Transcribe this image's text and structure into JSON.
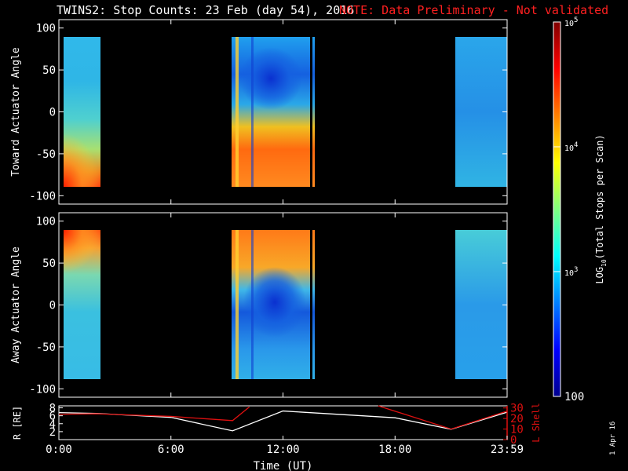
{
  "title": "TWINS2: Stop Counts: 23 Feb (day  54), 2016",
  "note": "NOTE: Data Preliminary - Not validated",
  "stamp": "1 Apr 16",
  "colors": {
    "note": "#ff2020",
    "lshell": "#e01010",
    "background": "#000000"
  },
  "chart_data": [
    {
      "type": "heatmap",
      "ylabel": "Toward Actuator Angle",
      "y_ticks": [
        "100",
        "50",
        "0",
        "-50",
        "-100"
      ],
      "ylim": [
        -110,
        110
      ],
      "xlim": [
        0,
        24
      ],
      "data_intervals_ut": [
        [
          0.0,
          2.1
        ],
        [
          9.1,
          13.6
        ],
        [
          21.1,
          24.0
        ]
      ],
      "colorscale_log10": [
        2,
        5
      ]
    },
    {
      "type": "heatmap",
      "ylabel": "Away Actuator Angle",
      "y_ticks": [
        "100",
        "50",
        "0",
        "-50",
        "-100"
      ],
      "ylim": [
        -110,
        110
      ],
      "xlim": [
        0,
        24
      ],
      "data_intervals_ut": [
        [
          0.0,
          2.1
        ],
        [
          9.1,
          13.6
        ],
        [
          21.1,
          24.0
        ]
      ],
      "colorscale_log10": [
        2,
        5
      ]
    },
    {
      "type": "line",
      "xlabel": "Time (UT)",
      "x_ticks": [
        "0:00",
        "6:00",
        "12:00",
        "18:00",
        "23:59"
      ],
      "xlim": [
        0,
        24
      ],
      "left_axis": {
        "label": "R [RE]",
        "ticks": [
          "8",
          "6",
          "4",
          "2"
        ],
        "ylim": [
          0,
          8.5
        ]
      },
      "right_axis": {
        "label": "L Shell",
        "ticks": [
          "30",
          "20",
          "10",
          "0"
        ],
        "ylim": [
          0,
          32
        ]
      },
      "series": [
        {
          "name": "R [RE]",
          "color": "#ffffff",
          "x": [
            0,
            2,
            6,
            9.3,
            12,
            18,
            21,
            24
          ],
          "y": [
            6.8,
            6.6,
            5.6,
            2.2,
            7.2,
            5.5,
            2.6,
            6.9
          ]
        },
        {
          "name": "L Shell",
          "color": "#e01010",
          "x": [
            0,
            2,
            6,
            9.3,
            10.2,
            17.1,
            21,
            24
          ],
          "y": [
            24,
            24.5,
            22,
            18,
            31,
            31,
            10,
            27
          ]
        }
      ]
    }
  ],
  "colorbar": {
    "label": "LOG10(Total Stops per Scan)",
    "label_text": "LOG",
    "label_sub": "10",
    "label_rest": "(Total Stops per Scan)",
    "range": [
      100,
      100000
    ],
    "ticks": [
      {
        "value": 100000,
        "base": "10",
        "exp": "5"
      },
      {
        "value": 10000,
        "base": "10",
        "exp": "4"
      },
      {
        "value": 1000,
        "base": "10",
        "exp": "3"
      },
      {
        "value": 100,
        "text": "100"
      }
    ]
  }
}
